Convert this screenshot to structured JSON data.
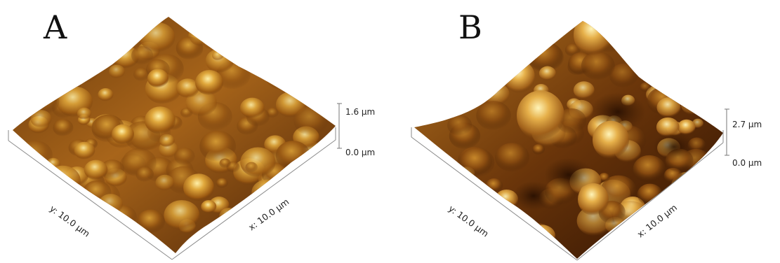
{
  "panels": [
    {
      "letter": "A",
      "z_max_label": "1.6 µm",
      "z_min_label": "0.0 µm",
      "x_axis_label": "x: 10.0 µm",
      "y_axis_label": "y: 10.0 µm"
    },
    {
      "letter": "B",
      "z_max_label": "2.7 µm",
      "z_min_label": "0.0 µm",
      "x_axis_label": "x: 10.0 µm",
      "y_axis_label": "y: 10.0 µm"
    }
  ],
  "colors": {
    "surface_dark": "#3a1a05",
    "surface_mid": "#9a5a12",
    "surface_light": "#d9a63a",
    "surface_highlight": "#fff2b0"
  }
}
